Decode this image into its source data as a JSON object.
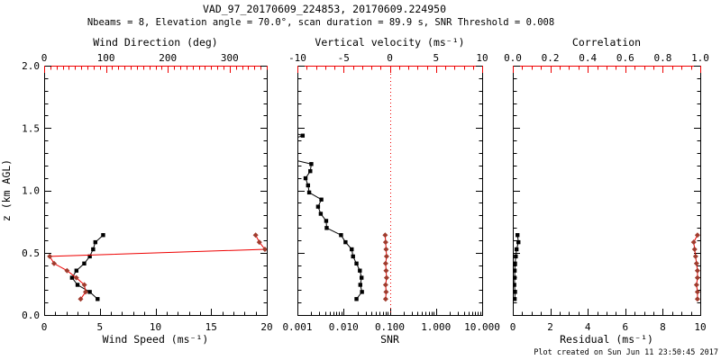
{
  "header": {
    "title": "VAD_97_20170609_224853, 20170609.224950",
    "subtitle": "Nbeams = 8, Elevation angle = 70.0°, scan duration = 89.9 s, SNR Threshold = 0.008"
  },
  "footer": {
    "credit": "Plot created on Sun Jun 11 23:50:45 2017"
  },
  "colors": {
    "black": "#000000",
    "red": "#ee0000",
    "marker_red": "#a03b2d",
    "background": "#ffffff"
  },
  "chart_data": [
    {
      "id": "wind",
      "type": "line",
      "y_axis": {
        "label": "z (km AGL)",
        "lim": [
          0,
          2
        ],
        "tick_values": [
          0,
          0.5,
          1,
          1.5,
          2
        ],
        "tick_labels": [
          "0.0",
          "0.5",
          "1.0",
          "1.5",
          "2.0"
        ],
        "minor_step": 0.1
      },
      "bottom_axis": {
        "label": "Wind Speed (ms⁻¹)",
        "lim": [
          0,
          20
        ],
        "tick_values": [
          0,
          5,
          10,
          15,
          20
        ],
        "tick_labels": [
          "0",
          "5",
          "10",
          "15",
          "20"
        ],
        "minor_step": 1
      },
      "top_axis": {
        "label": "Wind Direction (deg)",
        "lim": [
          0,
          360
        ],
        "tick_values": [
          0,
          100,
          200,
          300
        ],
        "tick_labels": [
          "0",
          "100",
          "200",
          "300"
        ],
        "minor_step": 10,
        "color": "red"
      },
      "series": [
        {
          "name": "wind-speed",
          "axis": "bottom",
          "marker": "square",
          "color": "black",
          "z": [
            0.128,
            0.185,
            0.242,
            0.299,
            0.356,
            0.413,
            0.47,
            0.527,
            0.584,
            0.641
          ],
          "values": [
            4.8,
            4.1,
            3.0,
            2.5,
            2.9,
            3.6,
            4.1,
            4.4,
            4.6,
            5.3
          ]
        },
        {
          "name": "wind-direction",
          "axis": "top",
          "marker": "diamond",
          "color": "red",
          "z": [
            0.128,
            0.185,
            0.242,
            0.299,
            0.356,
            0.413,
            0.47,
            0.527,
            0.584,
            0.641
          ],
          "values": [
            59,
            67,
            65,
            52,
            37,
            16,
            9,
            357,
            348,
            342
          ]
        }
      ]
    },
    {
      "id": "snr",
      "type": "line",
      "y_axis": {
        "lim": [
          0,
          2
        ],
        "tick_values": [
          0,
          0.5,
          1,
          1.5,
          2
        ],
        "tick_labels": [],
        "minor_step": 0.1
      },
      "bottom_axis": {
        "label": "SNR",
        "scale": "log",
        "lim": [
          0.001,
          10
        ],
        "tick_values": [
          0.001,
          0.01,
          0.1,
          1,
          10
        ],
        "tick_labels": [
          "0.001",
          "0.010",
          "0.100",
          "1.000",
          "10.000"
        ]
      },
      "top_axis": {
        "label": "Vertical velocity (ms⁻¹)",
        "lim": [
          -10,
          10
        ],
        "tick_values": [
          -10,
          -5,
          0,
          5,
          10
        ],
        "tick_labels": [
          "-10",
          "-5",
          "0",
          "5",
          "10"
        ],
        "minor_step": 1,
        "color": "red"
      },
      "zero_line": {
        "axis": "top",
        "value": 0,
        "style": "dotted",
        "color": "red"
      },
      "series": [
        {
          "name": "snr-profile",
          "axis": "bottom",
          "marker": "square",
          "color": "black",
          "z": [
            0.128,
            0.185,
            0.242,
            0.299,
            0.356,
            0.413,
            0.47,
            0.527,
            0.584,
            0.641,
            0.698,
            0.755,
            0.812,
            0.869,
            0.926,
            0.983,
            1.04,
            1.097,
            1.154,
            1.211,
            1.268,
            1.325,
            1.382,
            1.439,
            1.496
          ],
          "values": [
            0.019,
            0.025,
            0.023,
            0.0245,
            0.0225,
            0.019,
            0.016,
            0.015,
            0.011,
            0.0088,
            0.0043,
            0.0042,
            0.0032,
            0.0028,
            0.0033,
            0.0018,
            0.0017,
            0.0015,
            0.0019,
            0.002,
            null,
            null,
            null,
            0.0013,
            null
          ]
        },
        {
          "name": "vertical-velocity",
          "axis": "top",
          "marker": "diamond",
          "color": "red",
          "z": [
            0.128,
            0.185,
            0.242,
            0.299,
            0.356,
            0.413,
            0.47,
            0.527,
            0.584,
            0.641
          ],
          "values": [
            -0.45,
            -0.4,
            -0.45,
            -0.35,
            -0.4,
            -0.45,
            -0.35,
            -0.4,
            -0.45,
            -0.5
          ]
        }
      ]
    },
    {
      "id": "quality",
      "type": "line",
      "y_axis": {
        "lim": [
          0,
          2
        ],
        "tick_values": [
          0,
          0.5,
          1,
          1.5,
          2
        ],
        "tick_labels": [],
        "minor_step": 0.1
      },
      "bottom_axis": {
        "label": "Residual (ms⁻¹)",
        "lim": [
          0,
          10
        ],
        "tick_values": [
          0,
          2,
          4,
          6,
          8,
          10
        ],
        "tick_labels": [
          "0",
          "2",
          "4",
          "6",
          "8",
          "10"
        ],
        "minor_step": 0.5
      },
      "top_axis": {
        "label": "Correlation",
        "lim": [
          0,
          1
        ],
        "tick_values": [
          0,
          0.2,
          0.4,
          0.6,
          0.8,
          1
        ],
        "tick_labels": [
          "0.0",
          "0.2",
          "0.4",
          "0.6",
          "0.8",
          "1.0"
        ],
        "minor_step": 0.05,
        "color": "red"
      },
      "series": [
        {
          "name": "residual",
          "axis": "bottom",
          "marker": "square",
          "color": "black",
          "z": [
            0.128,
            0.185,
            0.242,
            0.299,
            0.356,
            0.413,
            0.47,
            0.527,
            0.584,
            0.641
          ],
          "values": [
            0.1,
            0.12,
            0.08,
            0.1,
            0.1,
            0.12,
            0.16,
            0.2,
            0.3,
            0.25
          ]
        },
        {
          "name": "correlation",
          "axis": "top",
          "marker": "diamond",
          "color": "red",
          "z": [
            0.128,
            0.185,
            0.242,
            0.299,
            0.356,
            0.413,
            0.47,
            0.527,
            0.584,
            0.641
          ],
          "values": [
            0.985,
            0.985,
            0.98,
            0.985,
            0.985,
            0.98,
            0.975,
            0.97,
            0.965,
            0.985
          ]
        }
      ]
    }
  ]
}
